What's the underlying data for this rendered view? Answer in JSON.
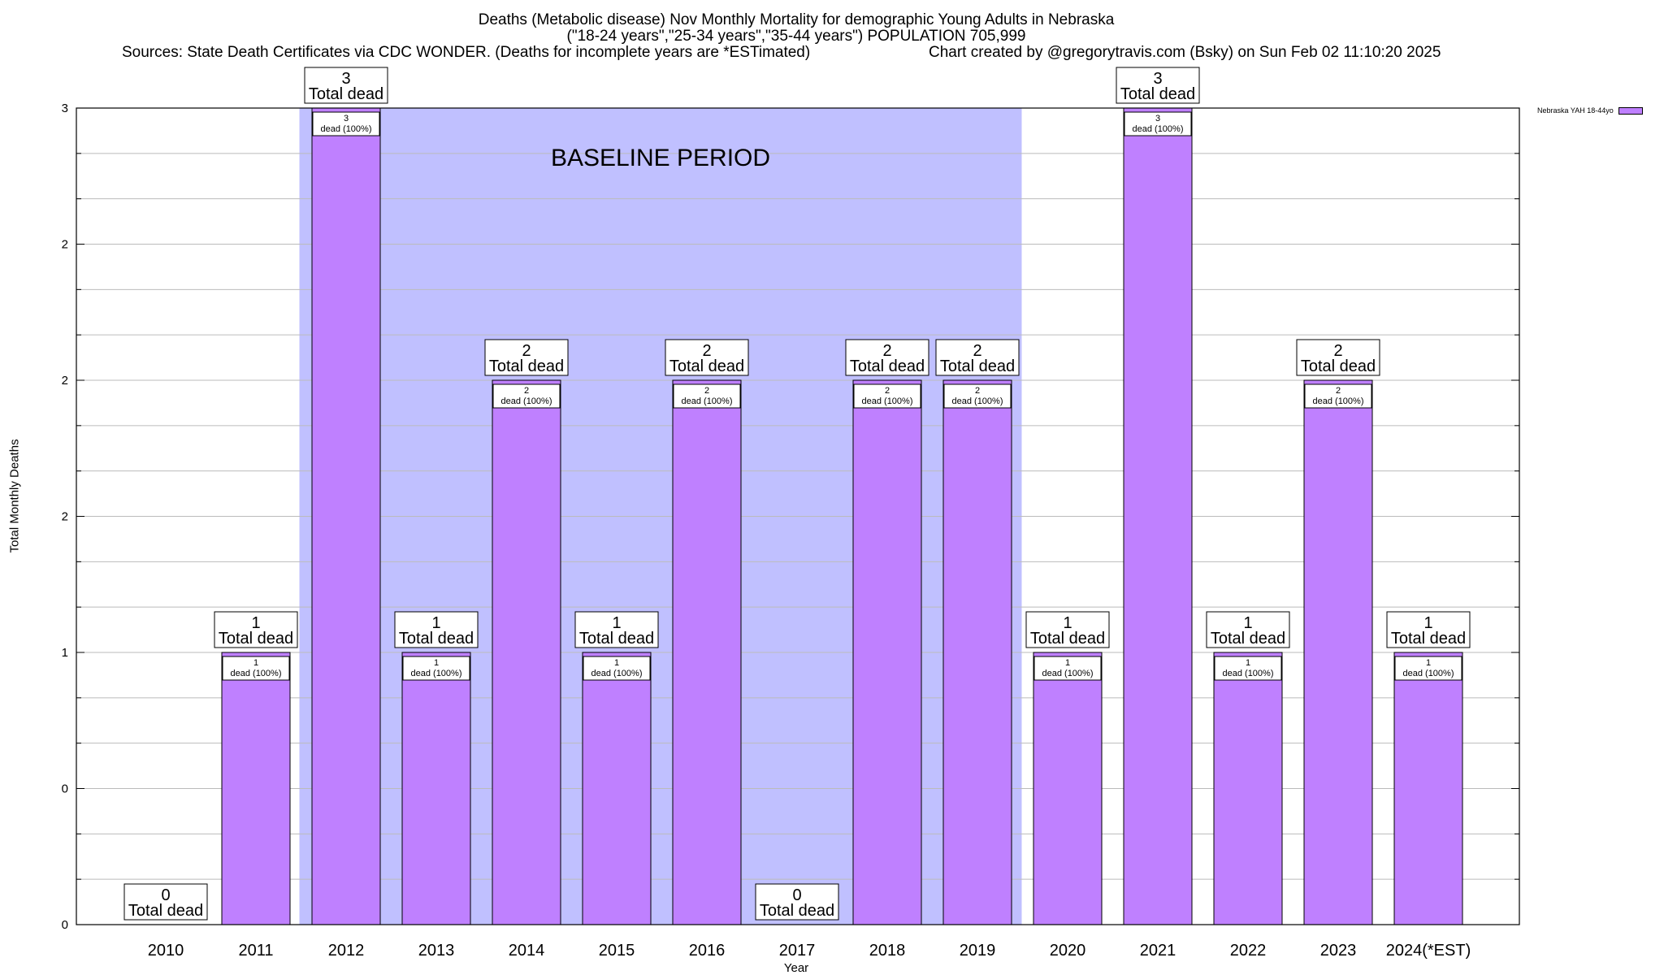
{
  "chart_data": {
    "type": "bar",
    "title": "Deaths (Metabolic disease) Nov Monthly Mortality for demographic Young Adults in Nebraska",
    "subtitle": "(\"18-24 years\",\"25-34 years\",\"35-44 years\") POPULATION 705,999",
    "sources": "Sources: State Death Certificates via CDC WONDER. (Deaths for incomplete years are *ESTimated)",
    "credit": "Chart created by @gregorytravis.com (Bsky) on Sun Feb 02 11:10:20 2025",
    "xlabel": "Year",
    "ylabel": "Total Monthly Deaths",
    "ylim": [
      0,
      3
    ],
    "ytick_values": [
      0,
      0.5,
      1,
      1.5,
      2,
      2.5,
      3
    ],
    "ytick_labels": [
      "0",
      "0",
      "1",
      "2",
      "2",
      "2",
      "3"
    ],
    "categories": [
      "2010",
      "2011",
      "2012",
      "2013",
      "2014",
      "2015",
      "2016",
      "2017",
      "2018",
      "2019",
      "2020",
      "2021",
      "2022",
      "2023",
      "2024(*EST)"
    ],
    "series": [
      {
        "name": "Nebraska YAH 18-44yo",
        "color": "#bf80ff",
        "values": [
          0,
          1,
          3,
          1,
          2,
          1,
          2,
          0,
          2,
          2,
          1,
          3,
          1,
          2,
          1
        ]
      }
    ],
    "total_label_text": "Total dead",
    "inner_label_suffix": "dead (100%)",
    "baseline": {
      "label": "BASELINE PERIOD",
      "start": "2012",
      "end": "2019",
      "color": "#c0c0ff"
    },
    "grid": true,
    "legend_position": "top-right"
  }
}
